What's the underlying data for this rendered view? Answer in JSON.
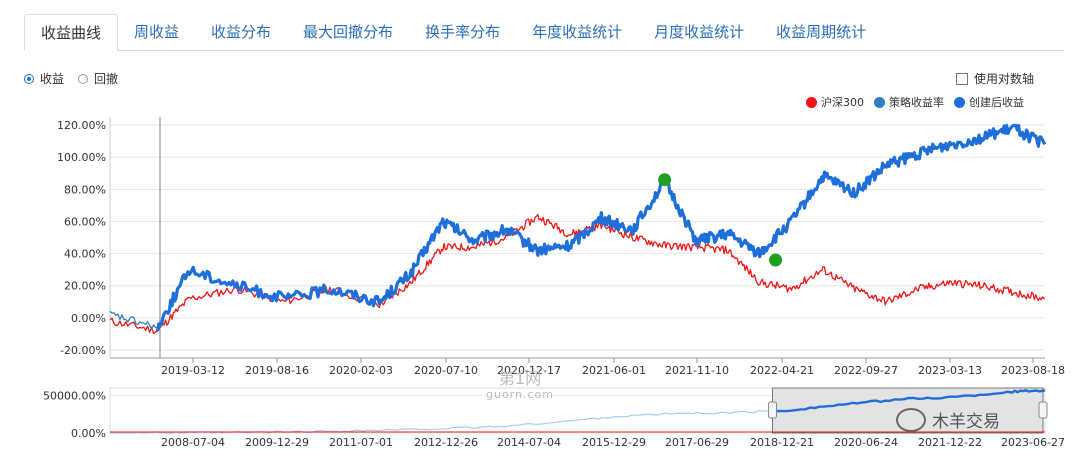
{
  "tabs": [
    {
      "label": "收益曲线",
      "active": true
    },
    {
      "label": "周收益"
    },
    {
      "label": "收益分布"
    },
    {
      "label": "最大回撤分布"
    },
    {
      "label": "换手率分布"
    },
    {
      "label": "年度收益统计"
    },
    {
      "label": "月度收益统计"
    },
    {
      "label": "收益周期统计"
    }
  ],
  "mode": {
    "options": [
      "收益",
      "回撤"
    ],
    "selected": "收益"
  },
  "log_axis_label": "使用对数轴",
  "log_axis_checked": false,
  "watermarks": {
    "top": "第1网",
    "sub": "guorn.com",
    "brand": "木羊交易"
  },
  "chart_data": [
    {
      "type": "line",
      "legend": [
        {
          "name": "沪深300",
          "color": "#f01414"
        },
        {
          "name": "策略收益率",
          "color": "#2f7fc1"
        },
        {
          "name": "创建后收益",
          "color": "#1e6fd9"
        }
      ],
      "y_ticks": [
        "120.00%",
        "100.00%",
        "80.00%",
        "60.00%",
        "40.00%",
        "20.00%",
        "0.00%",
        "-20.00%"
      ],
      "ylim": [
        -20,
        130
      ],
      "x_ticks": [
        "2019-03-12",
        "2019-08-16",
        "2020-02-03",
        "2020-07-10",
        "2020-12-17",
        "2021-06-01",
        "2021-11-10",
        "2022-04-21",
        "2022-09-27",
        "2023-03-13",
        "2023-08-18"
      ],
      "x": [
        "2018-10",
        "2019-01",
        "2019-03",
        "2019-06",
        "2019-09",
        "2019-12",
        "2020-03",
        "2020-05",
        "2020-07",
        "2020-09",
        "2020-11",
        "2021-01",
        "2021-03",
        "2021-05",
        "2021-07",
        "2021-09",
        "2021-11",
        "2022-01",
        "2022-03",
        "2022-05",
        "2022-07",
        "2022-09",
        "2022-11",
        "2023-01",
        "2023-03",
        "2023-05",
        "2023-07",
        "2023-09"
      ],
      "series": [
        {
          "name": "沪深300",
          "values": [
            -2,
            -8,
            12,
            18,
            10,
            18,
            8,
            22,
            44,
            44,
            50,
            63,
            52,
            58,
            50,
            45,
            44,
            42,
            22,
            18,
            30,
            18,
            10,
            18,
            22,
            20,
            16,
            12
          ]
        },
        {
          "name": "策略收益率",
          "values": [
            2,
            -6,
            null,
            null,
            null,
            null,
            null,
            null,
            null,
            null,
            null,
            null,
            null,
            null,
            null,
            null,
            null,
            null,
            null,
            null,
            null,
            null,
            null,
            null,
            null,
            null,
            null,
            null
          ]
        },
        {
          "name": "创建后收益",
          "values": [
            null,
            -6,
            30,
            20,
            12,
            18,
            10,
            28,
            60,
            48,
            55,
            42,
            45,
            62,
            55,
            85,
            48,
            52,
            40,
            60,
            88,
            78,
            95,
            102,
            108,
            112,
            118,
            108
          ]
        }
      ],
      "markers": [
        {
          "x": "2021-09",
          "y": 86
        },
        {
          "x": "2022-04",
          "y": 36
        }
      ]
    },
    {
      "type": "area",
      "role": "navigator",
      "y_ticks": [
        "50000.00%",
        "0.00%"
      ],
      "x_ticks": [
        "2008-07-04",
        "2009-12-29",
        "2011-07-01",
        "2012-12-26",
        "2014-07-04",
        "2015-12-29",
        "2017-06-29",
        "2018-12-21",
        "2020-06-24",
        "2021-12-22",
        "2023-06-27"
      ],
      "x": [
        "2007",
        "2008",
        "2009",
        "2010",
        "2011",
        "2012",
        "2013",
        "2014",
        "2015",
        "2016",
        "2017",
        "2018",
        "2019",
        "2020",
        "2021",
        "2022",
        "2023",
        "2023-08"
      ],
      "values": [
        0,
        200,
        600,
        1200,
        2500,
        4000,
        6000,
        9000,
        15000,
        22000,
        26000,
        27000,
        30000,
        38000,
        45000,
        48000,
        55000,
        57000
      ],
      "selection": [
        "2018-10",
        "2023-08"
      ]
    }
  ]
}
